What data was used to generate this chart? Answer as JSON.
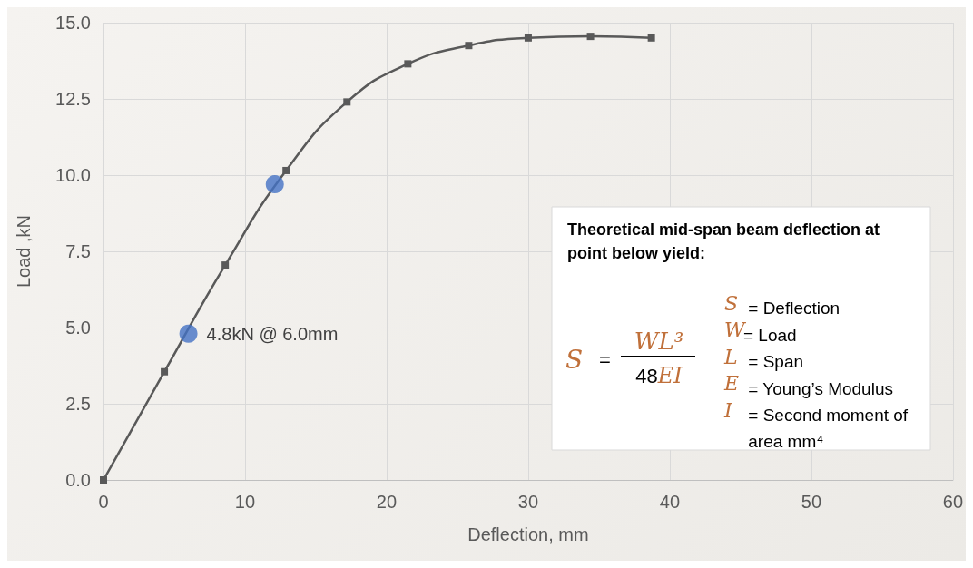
{
  "chart_data": {
    "type": "line",
    "xlabel": "Deflection, mm",
    "ylabel": "Load ,kN",
    "series": [
      {
        "type": "line",
        "color": "#595959",
        "marker": "square",
        "x": [
          0,
          4.3,
          8.6,
          12.9,
          17.2,
          21.5,
          25.8,
          30.0,
          34.4,
          38.7
        ],
        "values": [
          0,
          3.55,
          7.05,
          10.15,
          12.4,
          13.65,
          14.25,
          14.5,
          14.55,
          14.5
        ]
      },
      {
        "type": "scatter",
        "color": "#4472c4",
        "marker": "circle",
        "x": [
          6.0,
          12.1
        ],
        "values": [
          4.8,
          9.7
        ]
      }
    ],
    "xlim": [
      0,
      60
    ],
    "xticks": [
      0,
      10,
      20,
      30,
      40,
      50,
      60
    ],
    "ylim": [
      0,
      15
    ],
    "yticks": [
      {
        "value": 0,
        "label": "0.0"
      },
      {
        "value": 2.5,
        "label": "2.5"
      },
      {
        "value": 5,
        "label": "5.0"
      },
      {
        "value": 7.5,
        "label": "7.5"
      },
      {
        "value": 10,
        "label": "10.0"
      },
      {
        "value": 12.5,
        "label": "12.5"
      },
      {
        "value": 15,
        "label": "15.0"
      }
    ],
    "grid": true,
    "annotations": [
      {
        "text": "4.8kN @ 6.0mm",
        "x": 6.0,
        "y": 4.8
      },
      "Theoretical mid-span beam deflection at point below yield:",
      "S",
      "=",
      "WL³",
      "48EI",
      "S = Deflection",
      "W= Load",
      "L = Span",
      "E = Young’s Modulus",
      "I = Second moment of area mm⁴"
    ]
  }
}
